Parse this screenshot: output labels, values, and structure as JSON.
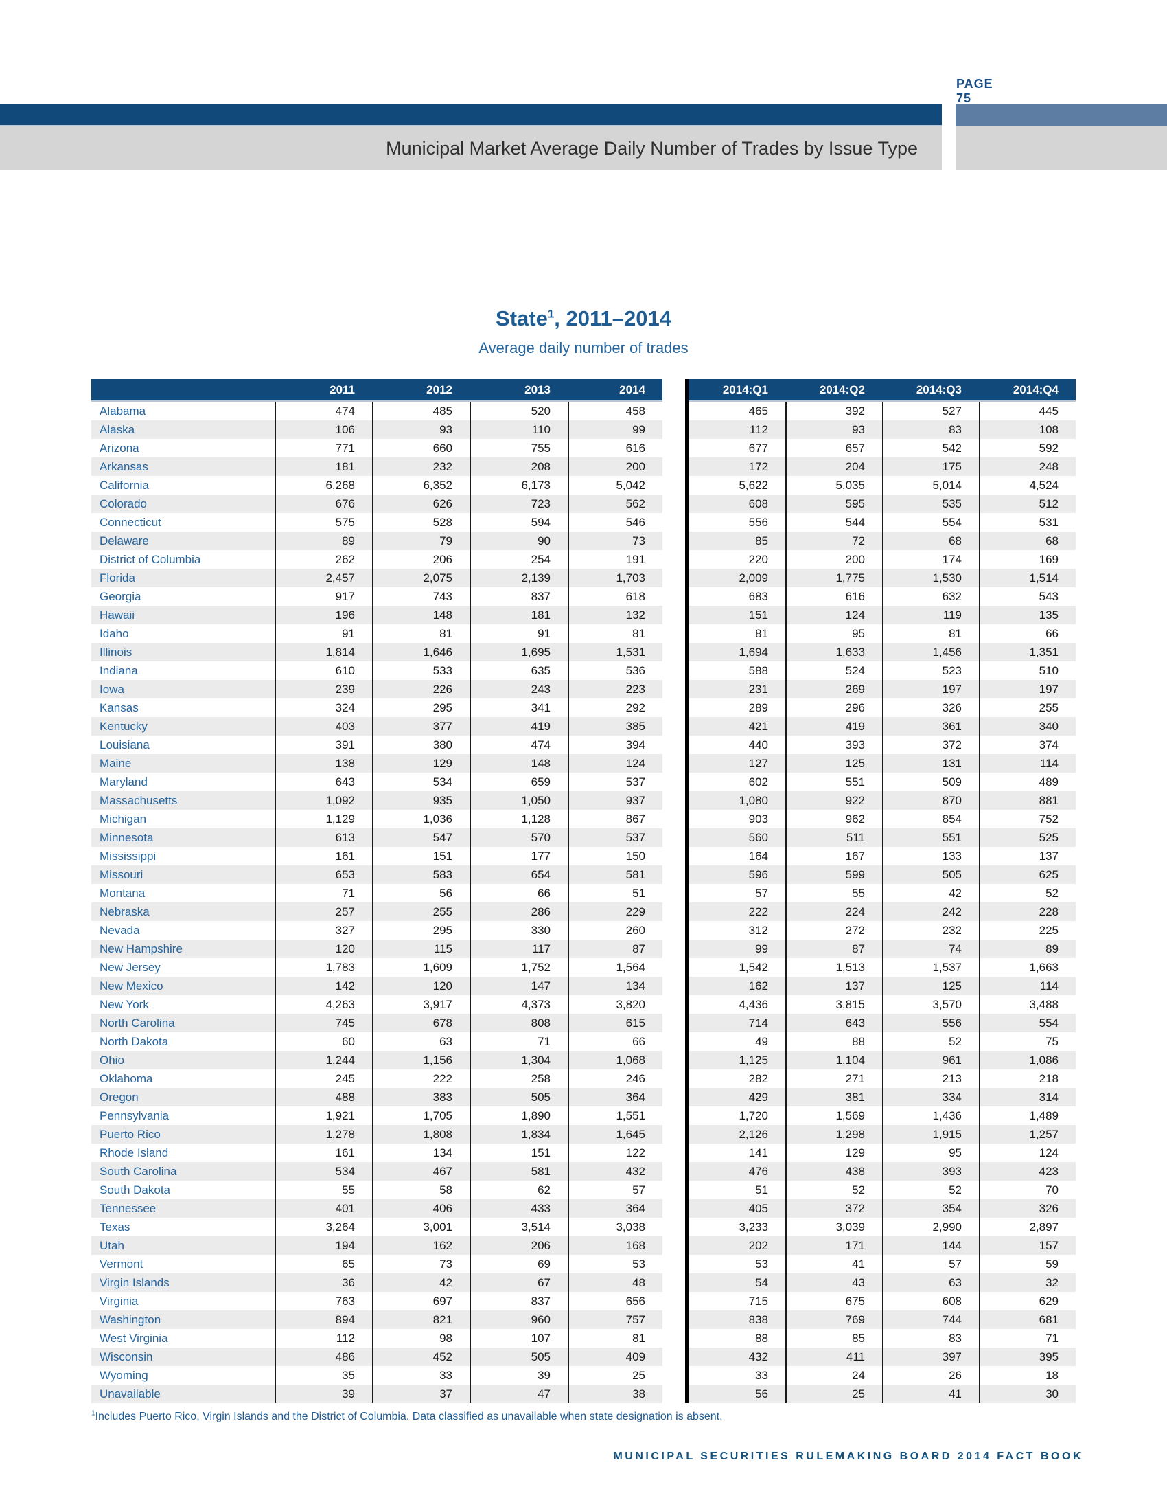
{
  "page": {
    "page_label": "PAGE 75",
    "band_heading": "Municipal Market Average Daily Number of Trades by Issue Type",
    "footer": "MUNICIPAL SECURITIES RULEMAKING BOARD 2014 FACT BOOK"
  },
  "colors": {
    "navy": "#12497B",
    "light_blue": "#5D7DA3",
    "band_gray": "#D5D5D5",
    "row_stripe": "#EBEBEB",
    "state_blue": "#26659E",
    "title_blue": "#1E5C94",
    "footer_navy": "#15537F",
    "number_text": "#1A1A1A"
  },
  "table": {
    "title_part1": "State",
    "title_sup": "1",
    "title_part2": ", 2011–2014",
    "subtitle": "Average daily number of trades",
    "columns_annual": [
      "2011",
      "2012",
      "2013",
      "2014"
    ],
    "columns_quarterly": [
      "2014:Q1",
      "2014:Q2",
      "2014:Q3",
      "2014:Q4"
    ],
    "footnote_sup": "1",
    "footnote_text": "Includes Puerto Rico, Virgin Islands and the District of Columbia. Data classified as unavailable when state designation is absent.",
    "rows": [
      {
        "state": "Alabama",
        "annual": [
          "474",
          "485",
          "520",
          "458"
        ],
        "quarterly": [
          "465",
          "392",
          "527",
          "445"
        ]
      },
      {
        "state": "Alaska",
        "annual": [
          "106",
          "93",
          "110",
          "99"
        ],
        "quarterly": [
          "112",
          "93",
          "83",
          "108"
        ]
      },
      {
        "state": "Arizona",
        "annual": [
          "771",
          "660",
          "755",
          "616"
        ],
        "quarterly": [
          "677",
          "657",
          "542",
          "592"
        ]
      },
      {
        "state": "Arkansas",
        "annual": [
          "181",
          "232",
          "208",
          "200"
        ],
        "quarterly": [
          "172",
          "204",
          "175",
          "248"
        ]
      },
      {
        "state": "California",
        "annual": [
          "6,268",
          "6,352",
          "6,173",
          "5,042"
        ],
        "quarterly": [
          "5,622",
          "5,035",
          "5,014",
          "4,524"
        ]
      },
      {
        "state": "Colorado",
        "annual": [
          "676",
          "626",
          "723",
          "562"
        ],
        "quarterly": [
          "608",
          "595",
          "535",
          "512"
        ]
      },
      {
        "state": "Connecticut",
        "annual": [
          "575",
          "528",
          "594",
          "546"
        ],
        "quarterly": [
          "556",
          "544",
          "554",
          "531"
        ]
      },
      {
        "state": "Delaware",
        "annual": [
          "89",
          "79",
          "90",
          "73"
        ],
        "quarterly": [
          "85",
          "72",
          "68",
          "68"
        ]
      },
      {
        "state": "District of Columbia",
        "annual": [
          "262",
          "206",
          "254",
          "191"
        ],
        "quarterly": [
          "220",
          "200",
          "174",
          "169"
        ]
      },
      {
        "state": "Florida",
        "annual": [
          "2,457",
          "2,075",
          "2,139",
          "1,703"
        ],
        "quarterly": [
          "2,009",
          "1,775",
          "1,530",
          "1,514"
        ]
      },
      {
        "state": "Georgia",
        "annual": [
          "917",
          "743",
          "837",
          "618"
        ],
        "quarterly": [
          "683",
          "616",
          "632",
          "543"
        ]
      },
      {
        "state": "Hawaii",
        "annual": [
          "196",
          "148",
          "181",
          "132"
        ],
        "quarterly": [
          "151",
          "124",
          "119",
          "135"
        ]
      },
      {
        "state": "Idaho",
        "annual": [
          "91",
          "81",
          "91",
          "81"
        ],
        "quarterly": [
          "81",
          "95",
          "81",
          "66"
        ]
      },
      {
        "state": "Illinois",
        "annual": [
          "1,814",
          "1,646",
          "1,695",
          "1,531"
        ],
        "quarterly": [
          "1,694",
          "1,633",
          "1,456",
          "1,351"
        ]
      },
      {
        "state": "Indiana",
        "annual": [
          "610",
          "533",
          "635",
          "536"
        ],
        "quarterly": [
          "588",
          "524",
          "523",
          "510"
        ]
      },
      {
        "state": "Iowa",
        "annual": [
          "239",
          "226",
          "243",
          "223"
        ],
        "quarterly": [
          "231",
          "269",
          "197",
          "197"
        ]
      },
      {
        "state": "Kansas",
        "annual": [
          "324",
          "295",
          "341",
          "292"
        ],
        "quarterly": [
          "289",
          "296",
          "326",
          "255"
        ]
      },
      {
        "state": "Kentucky",
        "annual": [
          "403",
          "377",
          "419",
          "385"
        ],
        "quarterly": [
          "421",
          "419",
          "361",
          "340"
        ]
      },
      {
        "state": "Louisiana",
        "annual": [
          "391",
          "380",
          "474",
          "394"
        ],
        "quarterly": [
          "440",
          "393",
          "372",
          "374"
        ]
      },
      {
        "state": "Maine",
        "annual": [
          "138",
          "129",
          "148",
          "124"
        ],
        "quarterly": [
          "127",
          "125",
          "131",
          "114"
        ]
      },
      {
        "state": "Maryland",
        "annual": [
          "643",
          "534",
          "659",
          "537"
        ],
        "quarterly": [
          "602",
          "551",
          "509",
          "489"
        ]
      },
      {
        "state": "Massachusetts",
        "annual": [
          "1,092",
          "935",
          "1,050",
          "937"
        ],
        "quarterly": [
          "1,080",
          "922",
          "870",
          "881"
        ]
      },
      {
        "state": "Michigan",
        "annual": [
          "1,129",
          "1,036",
          "1,128",
          "867"
        ],
        "quarterly": [
          "903",
          "962",
          "854",
          "752"
        ]
      },
      {
        "state": "Minnesota",
        "annual": [
          "613",
          "547",
          "570",
          "537"
        ],
        "quarterly": [
          "560",
          "511",
          "551",
          "525"
        ]
      },
      {
        "state": "Mississippi",
        "annual": [
          "161",
          "151",
          "177",
          "150"
        ],
        "quarterly": [
          "164",
          "167",
          "133",
          "137"
        ]
      },
      {
        "state": "Missouri",
        "annual": [
          "653",
          "583",
          "654",
          "581"
        ],
        "quarterly": [
          "596",
          "599",
          "505",
          "625"
        ]
      },
      {
        "state": "Montana",
        "annual": [
          "71",
          "56",
          "66",
          "51"
        ],
        "quarterly": [
          "57",
          "55",
          "42",
          "52"
        ]
      },
      {
        "state": "Nebraska",
        "annual": [
          "257",
          "255",
          "286",
          "229"
        ],
        "quarterly": [
          "222",
          "224",
          "242",
          "228"
        ]
      },
      {
        "state": "Nevada",
        "annual": [
          "327",
          "295",
          "330",
          "260"
        ],
        "quarterly": [
          "312",
          "272",
          "232",
          "225"
        ]
      },
      {
        "state": "New Hampshire",
        "annual": [
          "120",
          "115",
          "117",
          "87"
        ],
        "quarterly": [
          "99",
          "87",
          "74",
          "89"
        ]
      },
      {
        "state": "New Jersey",
        "annual": [
          "1,783",
          "1,609",
          "1,752",
          "1,564"
        ],
        "quarterly": [
          "1,542",
          "1,513",
          "1,537",
          "1,663"
        ]
      },
      {
        "state": "New Mexico",
        "annual": [
          "142",
          "120",
          "147",
          "134"
        ],
        "quarterly": [
          "162",
          "137",
          "125",
          "114"
        ]
      },
      {
        "state": "New York",
        "annual": [
          "4,263",
          "3,917",
          "4,373",
          "3,820"
        ],
        "quarterly": [
          "4,436",
          "3,815",
          "3,570",
          "3,488"
        ]
      },
      {
        "state": "North Carolina",
        "annual": [
          "745",
          "678",
          "808",
          "615"
        ],
        "quarterly": [
          "714",
          "643",
          "556",
          "554"
        ]
      },
      {
        "state": "North Dakota",
        "annual": [
          "60",
          "63",
          "71",
          "66"
        ],
        "quarterly": [
          "49",
          "88",
          "52",
          "75"
        ]
      },
      {
        "state": "Ohio",
        "annual": [
          "1,244",
          "1,156",
          "1,304",
          "1,068"
        ],
        "quarterly": [
          "1,125",
          "1,104",
          "961",
          "1,086"
        ]
      },
      {
        "state": "Oklahoma",
        "annual": [
          "245",
          "222",
          "258",
          "246"
        ],
        "quarterly": [
          "282",
          "271",
          "213",
          "218"
        ]
      },
      {
        "state": "Oregon",
        "annual": [
          "488",
          "383",
          "505",
          "364"
        ],
        "quarterly": [
          "429",
          "381",
          "334",
          "314"
        ]
      },
      {
        "state": "Pennsylvania",
        "annual": [
          "1,921",
          "1,705",
          "1,890",
          "1,551"
        ],
        "quarterly": [
          "1,720",
          "1,569",
          "1,436",
          "1,489"
        ]
      },
      {
        "state": "Puerto Rico",
        "annual": [
          "1,278",
          "1,808",
          "1,834",
          "1,645"
        ],
        "quarterly": [
          "2,126",
          "1,298",
          "1,915",
          "1,257"
        ]
      },
      {
        "state": "Rhode Island",
        "annual": [
          "161",
          "134",
          "151",
          "122"
        ],
        "quarterly": [
          "141",
          "129",
          "95",
          "124"
        ]
      },
      {
        "state": "South Carolina",
        "annual": [
          "534",
          "467",
          "581",
          "432"
        ],
        "quarterly": [
          "476",
          "438",
          "393",
          "423"
        ]
      },
      {
        "state": "South Dakota",
        "annual": [
          "55",
          "58",
          "62",
          "57"
        ],
        "quarterly": [
          "51",
          "52",
          "52",
          "70"
        ]
      },
      {
        "state": "Tennessee",
        "annual": [
          "401",
          "406",
          "433",
          "364"
        ],
        "quarterly": [
          "405",
          "372",
          "354",
          "326"
        ]
      },
      {
        "state": "Texas",
        "annual": [
          "3,264",
          "3,001",
          "3,514",
          "3,038"
        ],
        "quarterly": [
          "3,233",
          "3,039",
          "2,990",
          "2,897"
        ]
      },
      {
        "state": "Utah",
        "annual": [
          "194",
          "162",
          "206",
          "168"
        ],
        "quarterly": [
          "202",
          "171",
          "144",
          "157"
        ]
      },
      {
        "state": "Vermont",
        "annual": [
          "65",
          "73",
          "69",
          "53"
        ],
        "quarterly": [
          "53",
          "41",
          "57",
          "59"
        ]
      },
      {
        "state": "Virgin Islands",
        "annual": [
          "36",
          "42",
          "67",
          "48"
        ],
        "quarterly": [
          "54",
          "43",
          "63",
          "32"
        ]
      },
      {
        "state": "Virginia",
        "annual": [
          "763",
          "697",
          "837",
          "656"
        ],
        "quarterly": [
          "715",
          "675",
          "608",
          "629"
        ]
      },
      {
        "state": "Washington",
        "annual": [
          "894",
          "821",
          "960",
          "757"
        ],
        "quarterly": [
          "838",
          "769",
          "744",
          "681"
        ]
      },
      {
        "state": "West Virginia",
        "annual": [
          "112",
          "98",
          "107",
          "81"
        ],
        "quarterly": [
          "88",
          "85",
          "83",
          "71"
        ]
      },
      {
        "state": "Wisconsin",
        "annual": [
          "486",
          "452",
          "505",
          "409"
        ],
        "quarterly": [
          "432",
          "411",
          "397",
          "395"
        ]
      },
      {
        "state": "Wyoming",
        "annual": [
          "35",
          "33",
          "39",
          "25"
        ],
        "quarterly": [
          "33",
          "24",
          "26",
          "18"
        ]
      },
      {
        "state": "Unavailable",
        "annual": [
          "39",
          "37",
          "47",
          "38"
        ],
        "quarterly": [
          "56",
          "25",
          "41",
          "30"
        ]
      }
    ]
  }
}
